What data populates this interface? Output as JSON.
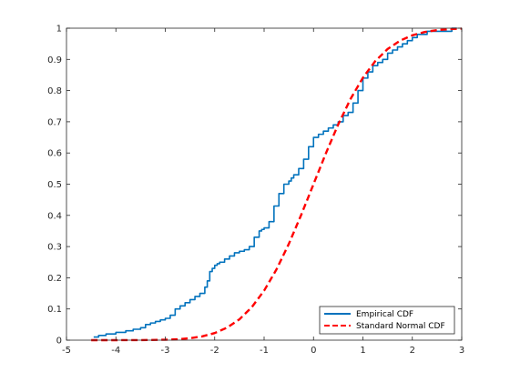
{
  "chart_data": {
    "type": "line",
    "xlim": [
      -5,
      3
    ],
    "ylim": [
      0,
      1
    ],
    "x_ticks": [
      "-5",
      "-4",
      "-3",
      "-2",
      "-1",
      "0",
      "1",
      "2",
      "3"
    ],
    "y_ticks": [
      "0",
      "0.1",
      "0.2",
      "0.3",
      "0.4",
      "0.5",
      "0.6",
      "0.7",
      "0.8",
      "0.9",
      "1"
    ],
    "grid": false,
    "legend_position": "bottom-right",
    "series": [
      {
        "name": "Empirical CDF",
        "color": "#0072BD",
        "style": "solid",
        "step": true,
        "x": [
          -4.45,
          -4.35,
          -4.2,
          -4.0,
          -3.8,
          -3.65,
          -3.5,
          -3.4,
          -3.3,
          -3.2,
          -3.1,
          -3.0,
          -2.9,
          -2.8,
          -2.7,
          -2.6,
          -2.5,
          -2.4,
          -2.3,
          -2.2,
          -2.15,
          -2.1,
          -2.05,
          -2.0,
          -1.95,
          -1.9,
          -1.8,
          -1.7,
          -1.6,
          -1.5,
          -1.4,
          -1.3,
          -1.2,
          -1.1,
          -1.05,
          -1.0,
          -0.9,
          -0.8,
          -0.7,
          -0.6,
          -0.5,
          -0.45,
          -0.4,
          -0.3,
          -0.2,
          -0.1,
          0.0,
          0.1,
          0.2,
          0.3,
          0.4,
          0.5,
          0.6,
          0.7,
          0.8,
          0.9,
          1.0,
          1.1,
          1.2,
          1.3,
          1.4,
          1.5,
          1.6,
          1.7,
          1.8,
          1.9,
          2.0,
          2.1,
          2.2,
          2.3,
          2.5,
          2.7,
          2.8,
          2.9
        ],
        "y": [
          0.01,
          0.015,
          0.02,
          0.025,
          0.03,
          0.035,
          0.04,
          0.05,
          0.055,
          0.06,
          0.065,
          0.07,
          0.08,
          0.1,
          0.11,
          0.12,
          0.13,
          0.14,
          0.15,
          0.17,
          0.19,
          0.22,
          0.23,
          0.24,
          0.245,
          0.25,
          0.26,
          0.27,
          0.28,
          0.285,
          0.29,
          0.3,
          0.33,
          0.35,
          0.355,
          0.36,
          0.38,
          0.43,
          0.47,
          0.5,
          0.51,
          0.52,
          0.53,
          0.55,
          0.58,
          0.62,
          0.65,
          0.66,
          0.67,
          0.68,
          0.69,
          0.7,
          0.72,
          0.73,
          0.76,
          0.8,
          0.84,
          0.86,
          0.88,
          0.89,
          0.9,
          0.92,
          0.93,
          0.94,
          0.95,
          0.96,
          0.97,
          0.98,
          0.98,
          0.99,
          0.99,
          0.99,
          1.0,
          1.0
        ]
      },
      {
        "name": "Standard Normal CDF",
        "color": "#FF0000",
        "style": "dashed",
        "step": false,
        "x": [
          -4.5,
          -4.0,
          -3.5,
          -3.0,
          -2.75,
          -2.5,
          -2.25,
          -2.0,
          -1.75,
          -1.5,
          -1.25,
          -1.0,
          -0.75,
          -0.5,
          -0.25,
          0.0,
          0.25,
          0.5,
          0.75,
          1.0,
          1.25,
          1.5,
          1.75,
          2.0,
          2.25,
          2.5,
          2.75,
          3.0
        ],
        "y": [
          0.0,
          0.0,
          0.0002,
          0.0013,
          0.003,
          0.0062,
          0.0122,
          0.0228,
          0.0401,
          0.0668,
          0.1056,
          0.1587,
          0.2266,
          0.3085,
          0.4013,
          0.5,
          0.5987,
          0.6915,
          0.7734,
          0.8413,
          0.8944,
          0.9332,
          0.9599,
          0.9772,
          0.9878,
          0.9938,
          0.997,
          0.9987
        ]
      }
    ]
  }
}
